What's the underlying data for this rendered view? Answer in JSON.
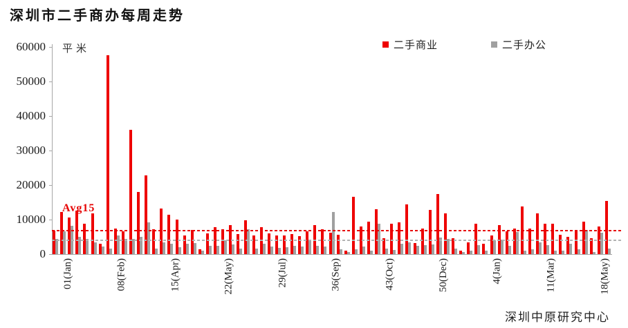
{
  "title": "深圳市二手商办每周走势",
  "unit_label": "平米",
  "avg_label": "Avg15",
  "source_label": "深圳中原研究中心",
  "legend": [
    {
      "label": "二手商业",
      "color": "#ee0000"
    },
    {
      "label": "二手办公",
      "color": "#a0a0a0"
    }
  ],
  "chart_data": {
    "type": "bar",
    "title": "深圳市二手商办每周走势",
    "ylabel": "平米",
    "ylim": [
      0,
      60000
    ],
    "yticks": [
      0,
      10000,
      20000,
      30000,
      40000,
      50000,
      60000
    ],
    "grid": false,
    "legend_position": "top-right",
    "x_tick_labels": [
      "01(Jan)",
      "08(Feb)",
      "15(Apr)",
      "22(May)",
      "29(Jul)",
      "36(Sep)",
      "43(Oct)",
      "50(Dec)",
      "4(Jan)",
      "11(Mar)",
      "18(May)"
    ],
    "x_tick_positions": [
      1,
      8,
      15,
      22,
      29,
      36,
      43,
      50,
      57,
      64,
      71
    ],
    "series": [
      {
        "name": "二手商业",
        "color": "#ee0000",
        "values": [
          6900,
          12300,
          10600,
          12700,
          8800,
          11800,
          3000,
          57700,
          7500,
          6700,
          36000,
          18000,
          22800,
          7200,
          13300,
          11400,
          10100,
          5500,
          7000,
          1400,
          6000,
          7900,
          7300,
          8400,
          5900,
          9800,
          5500,
          7900,
          6100,
          5500,
          5400,
          5900,
          5200,
          6700,
          8400,
          7200,
          6200,
          5700,
          1000,
          16700,
          8100,
          9400,
          13100,
          4700,
          8900,
          9300,
          14500,
          3200,
          7400,
          12900,
          17500,
          11800,
          4700,
          1000,
          3400,
          8800,
          3000,
          5400,
          8400,
          6700,
          7500,
          13800,
          7500,
          11800,
          8800,
          8900,
          5700,
          5100,
          6700,
          9400,
          4600,
          8100,
          15500
        ]
      },
      {
        "name": "二手办公",
        "color": "#a0a0a0",
        "values": [
          4500,
          6700,
          8200,
          5100,
          4400,
          3400,
          2200,
          1700,
          5500,
          4400,
          4500,
          5000,
          9200,
          1700,
          3400,
          3000,
          2000,
          3000,
          3200,
          1000,
          2500,
          2400,
          4000,
          2800,
          1700,
          7300,
          1700,
          3000,
          2200,
          1800,
          2000,
          2400,
          2200,
          3800,
          2400,
          2200,
          12300,
          1500,
          700,
          1400,
          2200,
          1000,
          8900,
          1700,
          1200,
          3000,
          3400,
          2400,
          2700,
          2800,
          4900,
          4400,
          1700,
          700,
          1100,
          2700,
          1100,
          4000,
          4200,
          2400,
          6400,
          1000,
          1500,
          3400,
          2600,
          1000,
          1000,
          3000,
          1400,
          7100,
          700,
          6200,
          1700
        ]
      }
    ],
    "avg_lines": [
      {
        "label": "Avg15",
        "value": 6800,
        "color": "#e60000"
      },
      {
        "label": "",
        "value": 4000,
        "color": "#b2b2b2"
      }
    ]
  }
}
